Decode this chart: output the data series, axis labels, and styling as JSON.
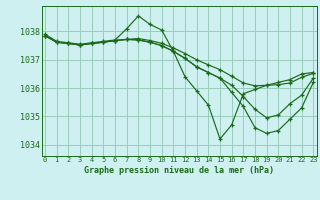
{
  "title": "Graphe pression niveau de la mer (hPa)",
  "bg_color": "#cff0f0",
  "grid_color": "#99ccbb",
  "line_color": "#1a6b1a",
  "x_ticks": [
    0,
    1,
    2,
    3,
    4,
    5,
    6,
    7,
    8,
    9,
    10,
    11,
    12,
    13,
    14,
    15,
    16,
    17,
    18,
    19,
    20,
    21,
    22,
    23
  ],
  "y_ticks": [
    1034,
    1035,
    1036,
    1037,
    1038
  ],
  "ylim": [
    1033.6,
    1038.9
  ],
  "xlim": [
    -0.3,
    23.3
  ],
  "lines": [
    {
      "y": [
        1037.9,
        1037.65,
        1037.6,
        1037.55,
        1037.6,
        1037.65,
        1037.7,
        1038.1,
        1038.55,
        1038.25,
        1038.05,
        1037.3,
        1036.4,
        1035.9,
        1035.4,
        1034.2,
        1034.7,
        1035.8,
        1035.95,
        1036.1,
        1036.2,
        1036.3,
        1036.5,
        1036.55
      ],
      "marker_x": [
        0,
        1,
        2,
        3,
        4,
        5,
        6,
        7,
        8,
        9,
        10,
        11,
        12,
        13,
        14,
        15,
        16,
        17,
        18,
        19,
        20,
        21,
        22,
        23
      ],
      "linestyle": "-"
    },
    {
      "y": [
        1037.85,
        1037.62,
        1037.58,
        1037.52,
        1037.58,
        1037.62,
        1037.68,
        1037.72,
        1037.75,
        1037.68,
        1037.58,
        1037.42,
        1037.22,
        1037.0,
        1036.82,
        1036.65,
        1036.42,
        1036.18,
        1036.08,
        1036.1,
        1036.12,
        1036.18,
        1036.38,
        1036.52
      ],
      "marker_x": [
        0,
        1,
        2,
        3,
        4,
        5,
        6,
        7,
        8,
        9,
        10,
        11,
        12,
        13,
        14,
        15,
        16,
        17,
        18,
        19,
        20,
        21,
        22,
        23
      ],
      "linestyle": "-"
    },
    {
      "y": [
        1037.85,
        1037.62,
        1037.58,
        1037.52,
        1037.58,
        1037.62,
        1037.68,
        1037.72,
        1037.7,
        1037.62,
        1037.5,
        1037.3,
        1037.05,
        1036.75,
        1036.55,
        1036.35,
        1036.1,
        1035.7,
        1035.25,
        1034.95,
        1035.05,
        1035.45,
        1035.75,
        1036.35
      ],
      "marker_x": [
        0,
        1,
        2,
        3,
        4,
        5,
        6,
        7,
        8,
        9,
        10,
        11,
        12,
        13,
        14,
        15,
        16,
        17,
        18,
        19,
        20,
        21,
        22,
        23
      ],
      "linestyle": "-"
    },
    {
      "y": [
        1037.85,
        1037.62,
        1037.58,
        1037.52,
        1037.58,
        1037.62,
        1037.68,
        1037.72,
        1037.7,
        1037.62,
        1037.5,
        1037.3,
        1037.05,
        1036.75,
        1036.55,
        1036.35,
        1035.85,
        1035.35,
        1034.6,
        1034.4,
        1034.5,
        1034.9,
        1035.3,
        1036.2
      ],
      "marker_x": [
        0,
        1,
        2,
        3,
        4,
        5,
        6,
        7,
        8,
        9,
        10,
        11,
        12,
        13,
        14,
        15,
        16,
        17,
        18,
        19,
        20,
        21,
        22,
        23
      ],
      "linestyle": "-"
    }
  ]
}
